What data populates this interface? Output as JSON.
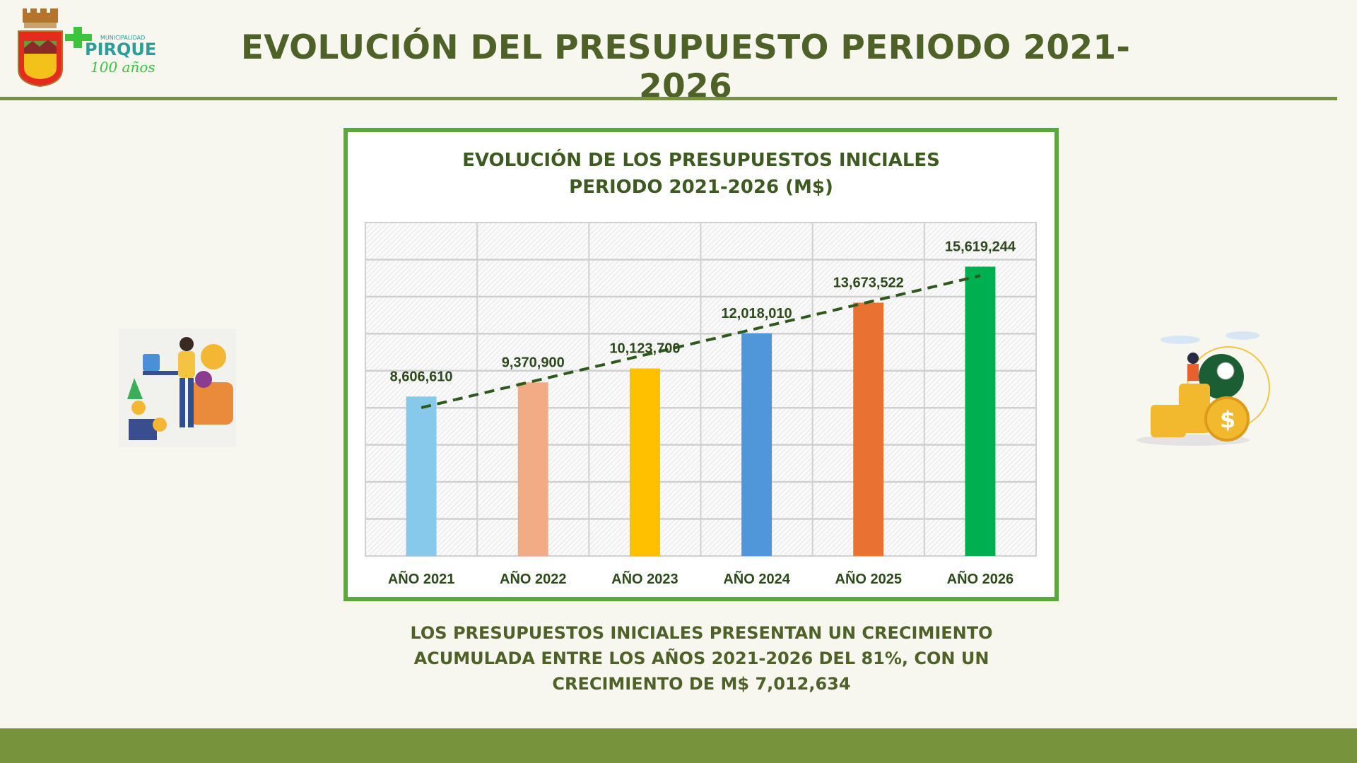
{
  "header": {
    "title": "EVOLUCIÓN DEL PRESUPUESTO PERIODO 2021-2026",
    "logo_text": "MUNICIPALIDAD PIRQUE 100 años",
    "crest_text": "PIRQUE"
  },
  "chart_data": {
    "type": "bar",
    "title_line1": "EVOLUCIÓN DE LOS PRESUPUESTOS INICIALES",
    "title_line2": "PERIODO 2021-2026 (M$)",
    "categories": [
      "AÑO 2021",
      "AÑO 2022",
      "AÑO 2023",
      "AÑO 2024",
      "AÑO 2025",
      "AÑO 2026"
    ],
    "values": [
      8606610,
      9370900,
      10123700,
      12018010,
      13673522,
      15619244
    ],
    "data_labels": [
      "8,606,610",
      "9,370,900",
      "10,123,700",
      "12,018,010",
      "13,673,522",
      "15,619,244"
    ],
    "colors": [
      "#87c9ea",
      "#f1ac86",
      "#ffc000",
      "#5097da",
      "#e97232",
      "#00b050"
    ],
    "ylim": [
      0,
      18000000
    ],
    "grid": true,
    "trendline": "linear, dashed",
    "trendline_color": "#2d5a1b",
    "label_color": "#2d4a1a",
    "xlabel": "",
    "ylabel": ""
  },
  "note": {
    "line1": "LOS PRESUPUESTOS INICIALES PRESENTAN UN CRECIMIENTO",
    "line2": "ACUMULADA ENTRE LOS AÑOS 2021-2026 DEL 81%, CON UN",
    "line3": "CRECIMIENTO DE M$ 7,012,634"
  },
  "colors": {
    "accent": "#77933c",
    "title": "#4e6228",
    "chart_border": "#5aa83c",
    "background": "#f7f7f0"
  }
}
